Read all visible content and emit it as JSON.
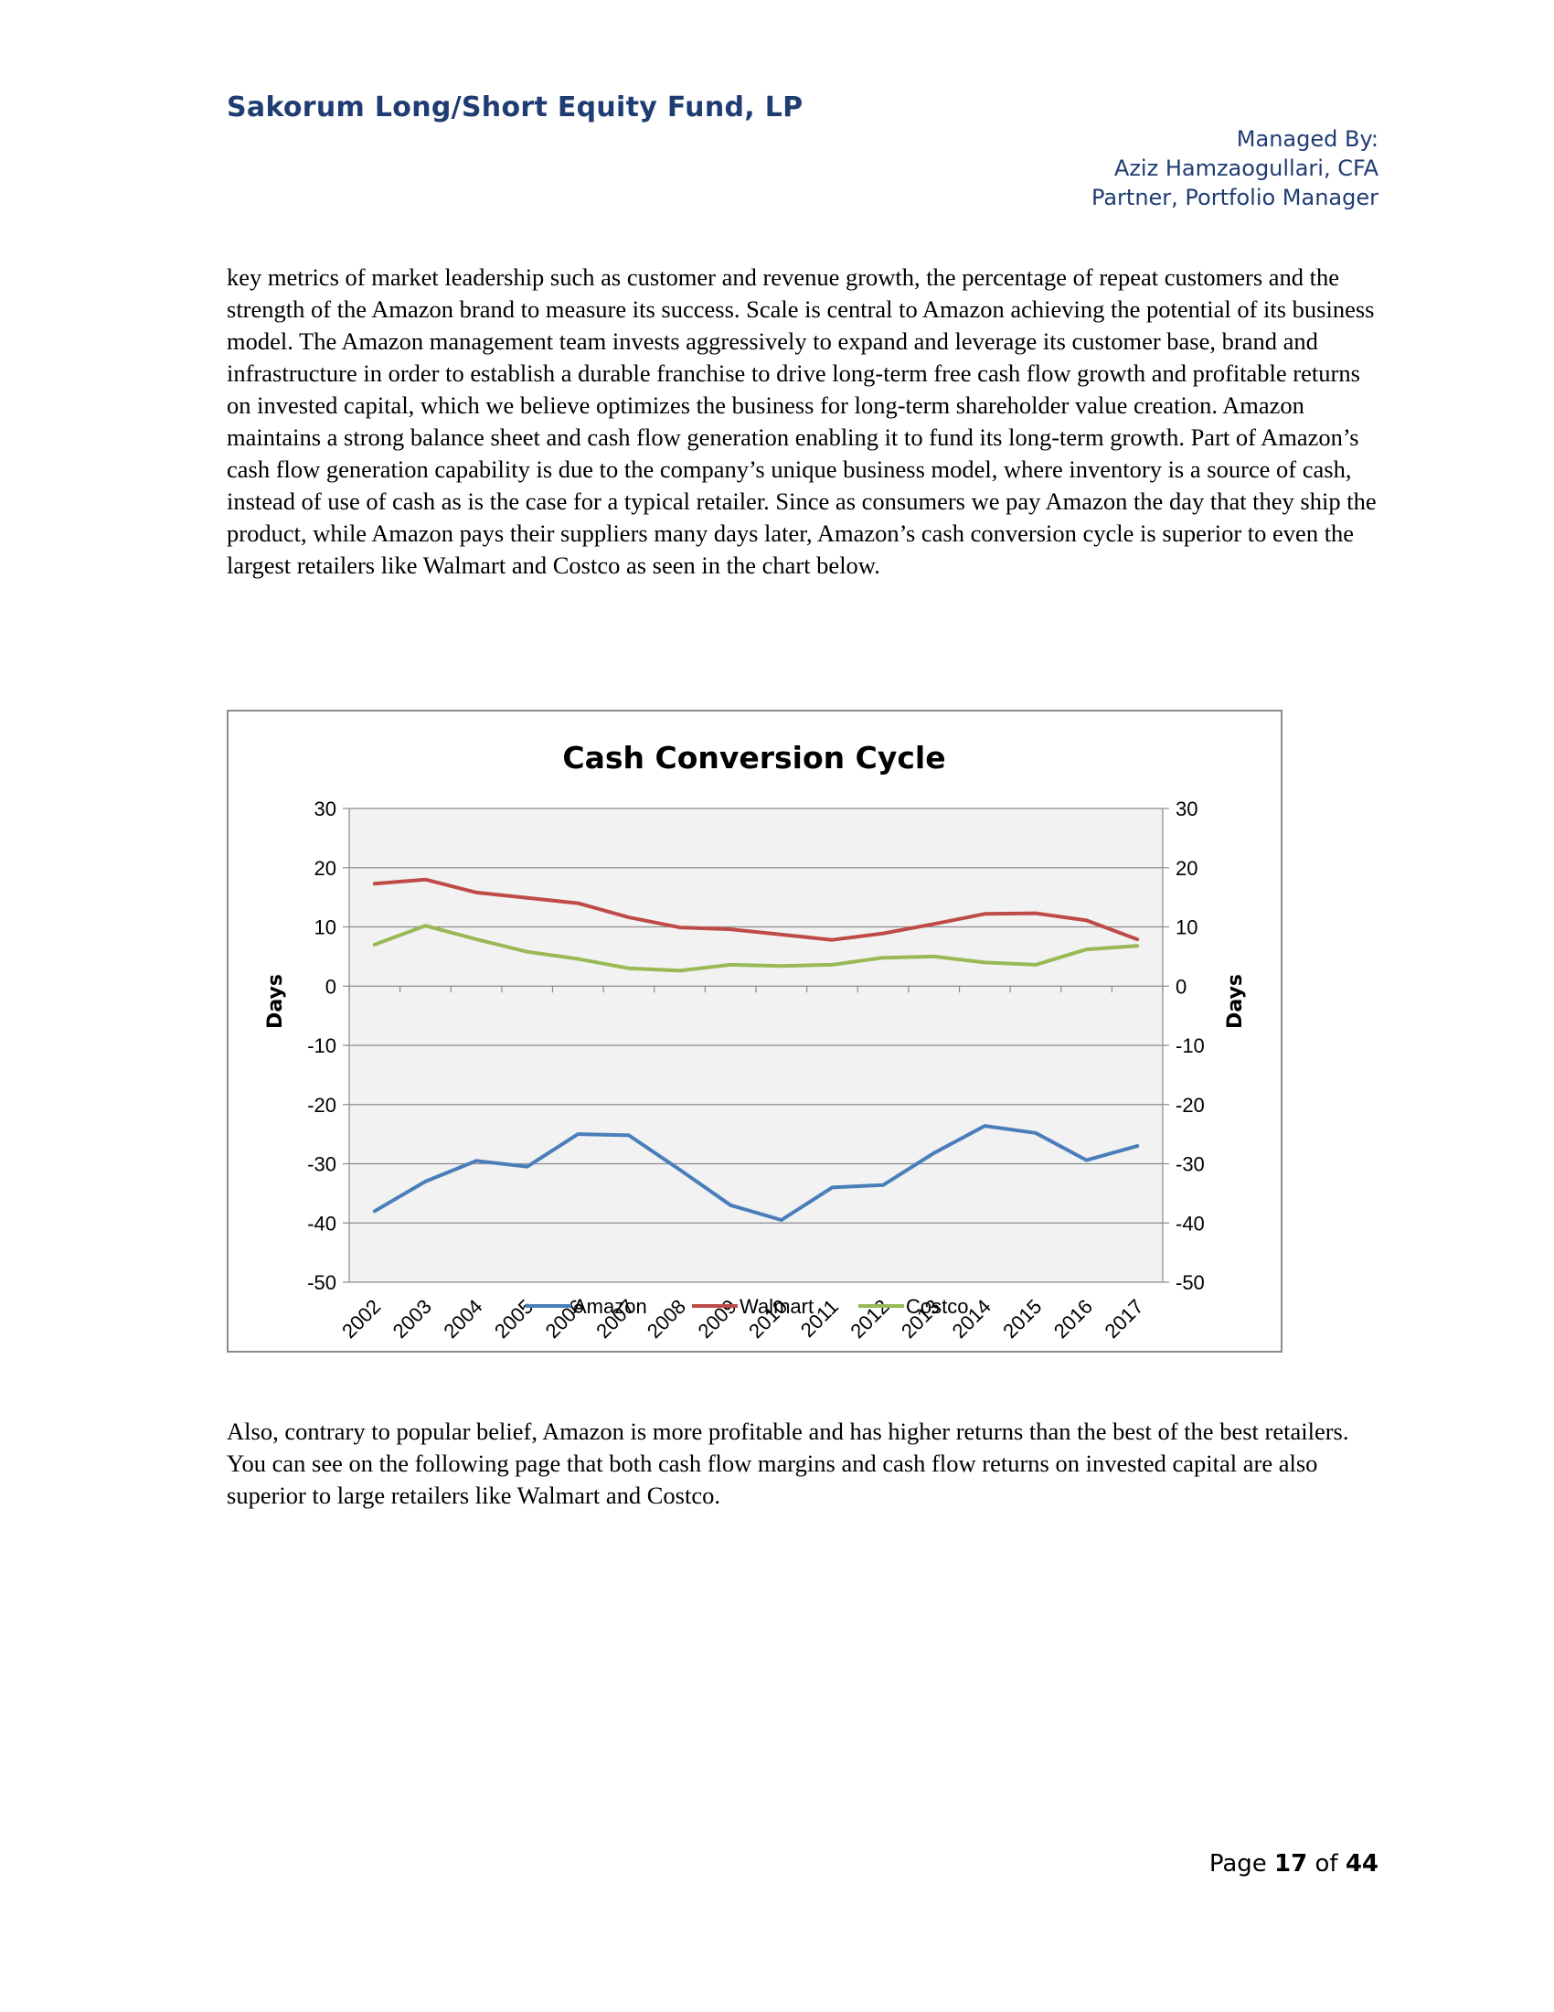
{
  "header": {
    "fund_name": "Sakorum Long/Short Equity Fund, LP",
    "managed_by": "Managed By:",
    "manager_name": "Aziz Hamzaogullari, CFA",
    "manager_title": "Partner, Portfolio Manager"
  },
  "body": {
    "paragraph_1": "key metrics of market leadership such as customer and revenue growth, the percentage of repeat customers and the strength of the Amazon brand to measure its success.  Scale is central to Amazon achieving the potential of its business model.  The Amazon management team invests aggressively to expand and leverage its customer base, brand and infrastructure in order to establish a durable franchise to drive long-term free cash flow growth and profitable returns on invested capital, which we believe optimizes the business for long-term shareholder value creation.  Amazon maintains a strong balance sheet and cash flow generation enabling it to fund its long-term growth.  Part of Amazon’s cash flow generation capability is due to the company’s unique business model, where inventory is a source of cash, instead of use of cash as is the case for a typical retailer.  Since as consumers we pay Amazon the day that they ship the product, while Amazon pays their suppliers many days later, Amazon’s cash conversion cycle is superior to even the largest retailers like Walmart and Costco as seen in the chart below.",
    "paragraph_2": "Also, contrary to popular belief, Amazon is more profitable and has higher returns than the best of the best retailers.  You can see on the following page that both cash flow margins and cash flow returns on invested capital are also superior to large retailers like Walmart and Costco."
  },
  "chart_data": {
    "type": "line",
    "title": "Cash Conversion Cycle",
    "ylabel": "Days",
    "ylabel_right": "Days",
    "xlabel": "",
    "ylim": [
      -50,
      30
    ],
    "yticks": [
      30,
      20,
      10,
      0,
      -10,
      -20,
      -30,
      -40,
      -50
    ],
    "grid": true,
    "legend_position": "bottom",
    "categories": [
      "2002",
      "2003",
      "2004",
      "2005",
      "2006",
      "2007",
      "2008",
      "2009",
      "2010",
      "2011",
      "2012",
      "2013",
      "2014",
      "2015",
      "2016",
      "2017"
    ],
    "series": [
      {
        "name": "Amazon",
        "color": "#4a7ebb",
        "values": [
          -38,
          -33,
          -29.5,
          -30.5,
          -25,
          -25.2,
          -31,
          -37,
          -39.5,
          -34,
          -33.6,
          -28.2,
          -23.6,
          -24.8,
          -29.4,
          -27
        ]
      },
      {
        "name": "Walmart",
        "color": "#be4b48",
        "values": [
          17.3,
          18,
          15.8,
          14.9,
          14,
          11.6,
          9.9,
          9.6,
          8.7,
          7.8,
          8.9,
          10.5,
          12.2,
          12.3,
          11.1,
          7.9
        ]
      },
      {
        "name": "Costco",
        "color": "#98b954",
        "values": [
          7,
          10.2,
          7.9,
          5.8,
          4.6,
          3,
          2.6,
          3.6,
          3.4,
          3.6,
          4.8,
          5,
          4,
          3.6,
          6.2,
          6.8
        ]
      }
    ]
  },
  "footer": {
    "page_label": "Page",
    "page_number": "17",
    "of_label": "of",
    "total_pages": "44"
  }
}
